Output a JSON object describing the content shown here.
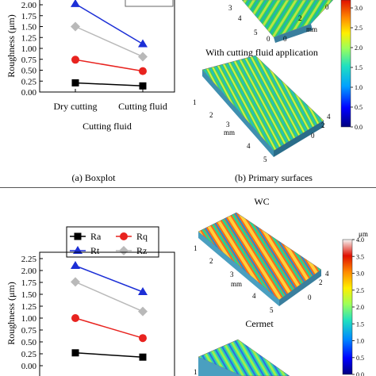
{
  "top_panel": {
    "chart": {
      "ylabel": "Roughness (μm)",
      "xlabel": "Cutting fluid",
      "yticks": [
        "0.00",
        "0.25",
        "0.50",
        "0.75",
        "1.00",
        "1.25",
        "1.50",
        "1.75",
        "2.00"
      ],
      "categories": [
        "Dry cutting",
        "Cutting fluid"
      ]
    },
    "surface_title": "With cutting fluid application",
    "colorbar_ticks": [
      "0.0",
      "0.5",
      "1.0",
      "1.5",
      "2.0",
      "2.5",
      "3.0"
    ],
    "axis_upper": {
      "t3": "3",
      "t4": "4",
      "t5": "5",
      "t0": "0",
      "t2": "2",
      "mm": "mm"
    },
    "axis_lower": {
      "t1": "1",
      "t2": "2",
      "mm": "mm",
      "t3": "3",
      "t4": "4",
      "t5": "5",
      "tr4": "4",
      "tr2": "2",
      "tr0": "0"
    },
    "caption_a": "(a) Boxplot",
    "caption_b": "(b) Primary surfaces"
  },
  "bottom_panel": {
    "chart": {
      "ylabel": "Roughness (μm)",
      "yticks": [
        "0.00",
        "0.25",
        "0.50",
        "0.75",
        "1.00",
        "1.25",
        "1.50",
        "1.75",
        "2.00",
        "2.25"
      ]
    },
    "legend": {
      "ra": "Ra",
      "rq": "Rq",
      "rt": "Rt",
      "rz": "Rz"
    },
    "surface_title_wc": "WC",
    "surface_title_cermet": "Cermet",
    "colorbar_unit": "μm",
    "colorbar_ticks": [
      "0.0",
      "0.5",
      "1.0",
      "1.5",
      "2.0",
      "2.5",
      "3.0",
      "3.5",
      "4.0"
    ],
    "axis_wc": {
      "t1": "1",
      "t2": "2",
      "t3": "3",
      "t4": "4",
      "t5": "5",
      "tr4": "4",
      "tr2": "2",
      "tr0": "0",
      "mm": "mm"
    },
    "axis_cermet": {
      "t1": "1"
    }
  },
  "chart_data": [
    {
      "type": "line",
      "categories": [
        "Dry cutting",
        "Cutting fluid"
      ],
      "xlabel": "Cutting fluid",
      "ylabel": "Roughness (μm)",
      "ylim": [
        0,
        2.0
      ],
      "series": [
        {
          "values": [
            0.21,
            0.14
          ],
          "color": "#000000",
          "marker": "square"
        },
        {
          "values": [
            0.74,
            0.48
          ],
          "color": "#e8231f",
          "marker": "circle"
        },
        {
          "values": [
            2.02,
            1.1
          ],
          "color": "#1c2fd6",
          "marker": "triangle"
        },
        {
          "values": [
            1.5,
            0.81
          ],
          "color": "#b9b9b9",
          "marker": "diamond"
        }
      ]
    },
    {
      "type": "line",
      "categories": [
        "WC",
        "Cermet"
      ],
      "ylabel": "Roughness (μm)",
      "ylim": [
        0,
        2.25
      ],
      "legend": "top",
      "series": [
        {
          "name": "Ra",
          "values": [
            0.27,
            0.18
          ],
          "color": "#000000",
          "marker": "square"
        },
        {
          "name": "Rq",
          "values": [
            1.0,
            0.58
          ],
          "color": "#e8231f",
          "marker": "circle"
        },
        {
          "name": "Rt",
          "values": [
            2.1,
            1.55
          ],
          "color": "#1c2fd6",
          "marker": "triangle"
        },
        {
          "name": "Rz",
          "values": [
            1.76,
            1.14
          ],
          "color": "#b9b9b9",
          "marker": "diamond"
        }
      ]
    }
  ]
}
